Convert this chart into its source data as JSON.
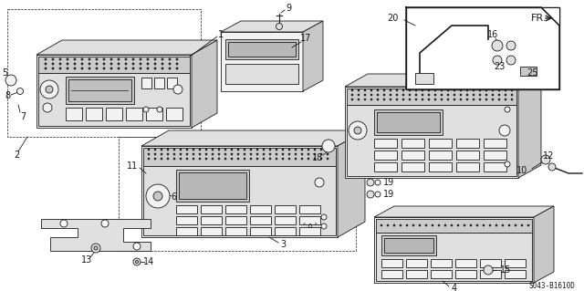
{
  "background_color": "#ffffff",
  "line_color": "#1a1a1a",
  "diagram_code": "S043-B1610D",
  "fr_label": "FR.",
  "figsize": [
    6.4,
    3.19
  ],
  "dpi": 100,
  "fill_light": "#f2f2f2",
  "fill_mid": "#e0e0e0",
  "fill_dark": "#c8c8c8",
  "fill_panel": "#d4d4d4"
}
